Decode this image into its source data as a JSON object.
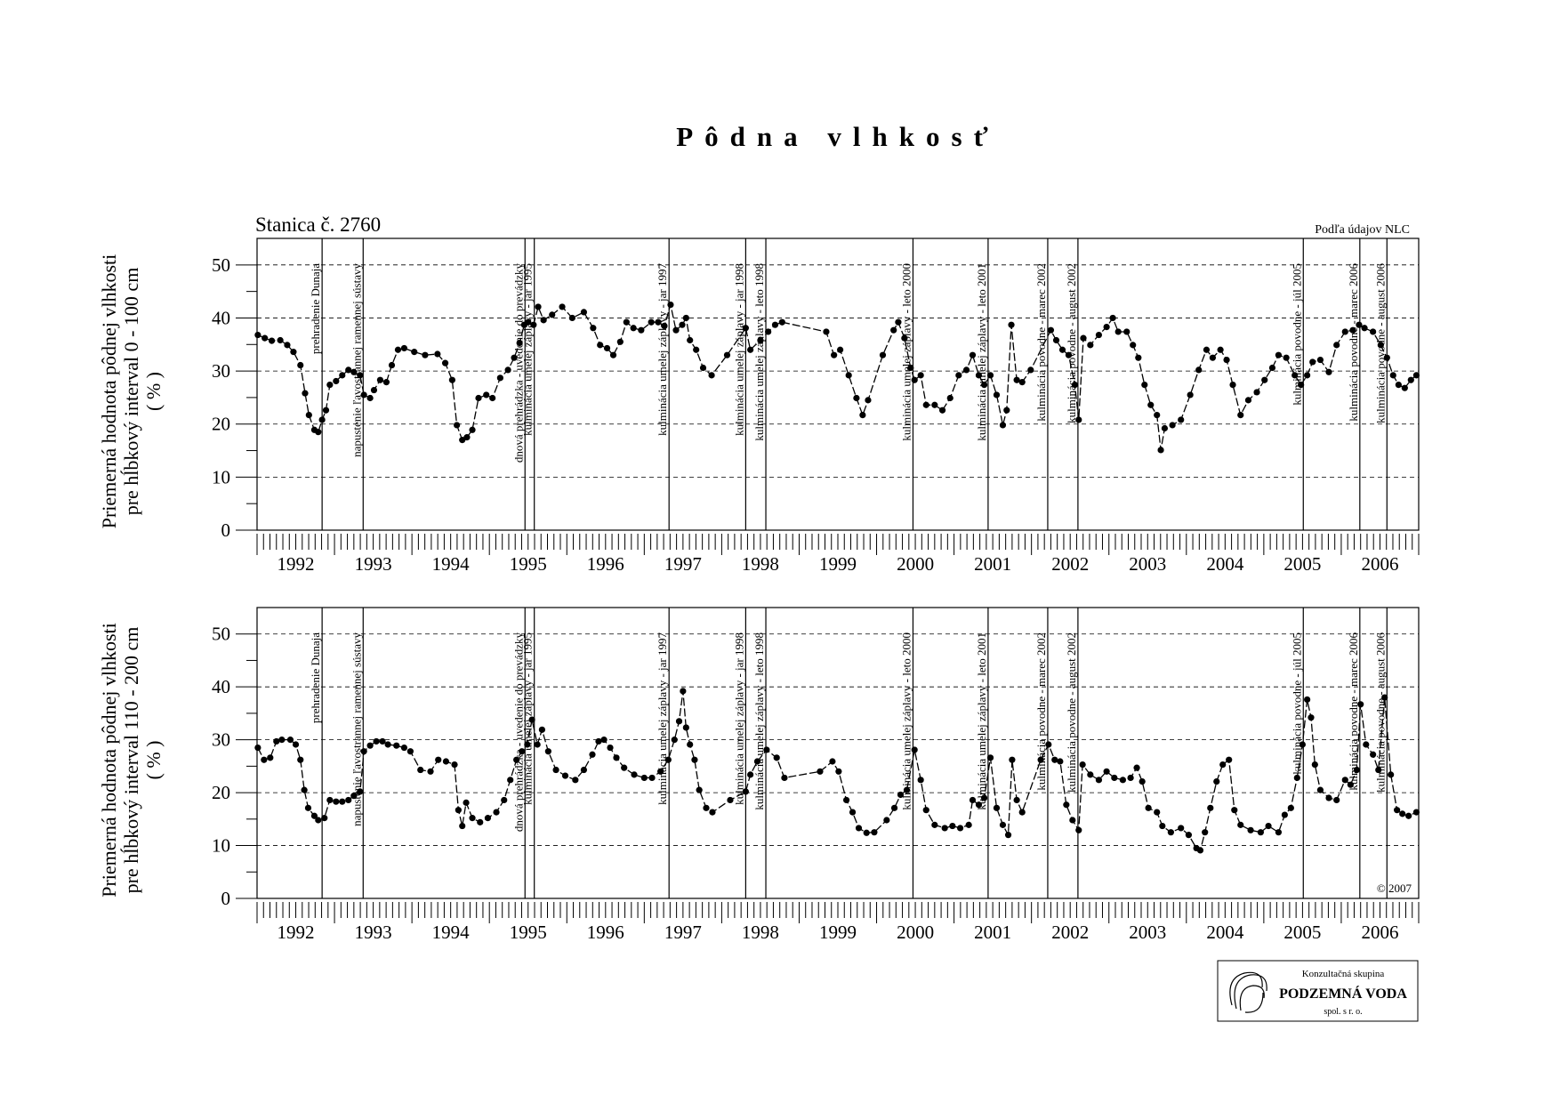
{
  "title": "Pôdna vlhkosť",
  "annotations": [
    {
      "x": 1992.84,
      "label": "prehradenie Dunaja"
    },
    {
      "x": 1993.37,
      "label": "napustenie ľavostrannej ramennej sústavy"
    },
    {
      "x": 1995.46,
      "label": "dnová prehrádzka - uvedenie do prevádzky"
    },
    {
      "x": 1995.58,
      "label": "kulminácia umelej záplavy - jar 1995"
    },
    {
      "x": 1997.32,
      "label": "kulminácia umelej záplavy - jar 1997"
    },
    {
      "x": 1998.31,
      "label": "kulminácia umelej záplavy - jar 1998"
    },
    {
      "x": 1998.57,
      "label": "kulminácia umelej záplavy - leto 1998"
    },
    {
      "x": 2000.47,
      "label": "kulminácia umelej záplavy - leto 2000"
    },
    {
      "x": 2001.44,
      "label": "kulminácia umelej záplavy - leto 2001"
    },
    {
      "x": 2002.21,
      "label": "kulminácia povodne - marec 2002"
    },
    {
      "x": 2002.6,
      "label": "kulminácia povodne - august 2002"
    },
    {
      "x": 2005.51,
      "label": "kulminácia povodne - júl 2005"
    },
    {
      "x": 2006.24,
      "label": "kulminácia povodne - marec 2006"
    },
    {
      "x": 2006.59,
      "label": "kulminácia povodne - august 2006"
    }
  ],
  "logo": {
    "line1": "Konzultačná skupina",
    "line2": "PODZEMNÁ VODA",
    "line3": "spol. s r. o."
  },
  "chart_data": [
    {
      "type": "line",
      "title": "Stanica č. 2760",
      "note": "Podľa údajov NLC",
      "ylabel": [
        "Priemerná hodnota pôdnej vlhkosti",
        "pre hĺbkový interval 0 - 100 cm",
        "( % )"
      ],
      "color": "#000000",
      "grid": true,
      "xlim": [
        1992,
        2007
      ],
      "ylim": [
        0,
        55
      ],
      "yticks": [
        0,
        10,
        20,
        30,
        40,
        50
      ],
      "xticks": [
        {
          "value": 1992.5,
          "label": "1992"
        },
        {
          "value": 1993.5,
          "label": "1993"
        },
        {
          "value": 1994.5,
          "label": "1994"
        },
        {
          "value": 1995.5,
          "label": "1995"
        },
        {
          "value": 1996.5,
          "label": "1996"
        },
        {
          "value": 1997.5,
          "label": "1997"
        },
        {
          "value": 1998.5,
          "label": "1998"
        },
        {
          "value": 1999.5,
          "label": "1999"
        },
        {
          "value": 2000.5,
          "label": "2000"
        },
        {
          "value": 2001.5,
          "label": "2001"
        },
        {
          "value": 2002.5,
          "label": "2002"
        },
        {
          "value": 2003.5,
          "label": "2003"
        },
        {
          "value": 2004.5,
          "label": "2004"
        },
        {
          "value": 2005.5,
          "label": "2005"
        },
        {
          "value": 2006.5,
          "label": "2006"
        }
      ],
      "x": [
        1992.01,
        1992.1,
        1992.19,
        1992.3,
        1992.39,
        1992.47,
        1992.56,
        1992.62,
        1992.67,
        1992.74,
        1992.79,
        1992.84,
        1992.89,
        1992.94,
        1993.02,
        1993.1,
        1993.18,
        1993.25,
        1993.33,
        1993.38,
        1993.46,
        1993.51,
        1993.59,
        1993.67,
        1993.74,
        1993.82,
        1993.9,
        1994.03,
        1994.17,
        1994.33,
        1994.43,
        1994.52,
        1994.58,
        1994.65,
        1994.71,
        1994.78,
        1994.86,
        1994.96,
        1995.04,
        1995.14,
        1995.24,
        1995.32,
        1995.39,
        1995.45,
        1995.5,
        1995.57,
        1995.63,
        1995.7,
        1995.81,
        1995.94,
        1996.07,
        1996.22,
        1996.34,
        1996.43,
        1996.52,
        1996.6,
        1996.69,
        1996.77,
        1996.86,
        1996.96,
        1997.09,
        1997.18,
        1997.26,
        1997.34,
        1997.41,
        1997.49,
        1997.54,
        1997.59,
        1997.67,
        1997.76,
        1997.87,
        1998.07,
        1998.31,
        1998.37,
        1998.5,
        1998.6,
        1998.69,
        1998.78,
        1999.35,
        1999.45,
        1999.53,
        1999.64,
        1999.74,
        1999.82,
        1999.89,
        2000.08,
        2000.22,
        2000.28,
        2000.36,
        2000.44,
        2000.49,
        2000.57,
        2000.64,
        2000.75,
        2000.85,
        2000.95,
        2001.06,
        2001.16,
        2001.24,
        2001.32,
        2001.39,
        2001.47,
        2001.55,
        2001.63,
        2001.68,
        2001.74,
        2001.81,
        2001.88,
        2001.99,
        2002.25,
        2002.32,
        2002.4,
        2002.48,
        2002.56,
        2002.61,
        2002.67,
        2002.76,
        2002.87,
        2002.97,
        2003.05,
        2003.12,
        2003.23,
        2003.31,
        2003.38,
        2003.46,
        2003.54,
        2003.62,
        2003.67,
        2003.72,
        2003.82,
        2003.93,
        2004.05,
        2004.16,
        2004.26,
        2004.34,
        2004.44,
        2004.52,
        2004.6,
        2004.7,
        2004.8,
        2004.91,
        2005.01,
        2005.11,
        2005.19,
        2005.29,
        2005.4,
        2005.48,
        2005.56,
        2005.63,
        2005.73,
        2005.84,
        2005.94,
        2006.05,
        2006.15,
        2006.23,
        2006.3,
        2006.41,
        2006.51,
        2006.59,
        2006.67,
        2006.74,
        2006.82,
        2006.9,
        2006.97
      ],
      "values": [
        36.8,
        36.2,
        35.7,
        35.8,
        34.9,
        33.6,
        31.1,
        25.8,
        21.7,
        18.9,
        18.5,
        20.8,
        22.6,
        27.4,
        28.1,
        29.2,
        30.2,
        29.8,
        29.2,
        25.5,
        24.9,
        26.4,
        28.3,
        27.9,
        31.1,
        34.0,
        34.3,
        33.6,
        33.0,
        33.2,
        31.5,
        28.3,
        19.8,
        17.0,
        17.5,
        18.9,
        24.9,
        25.5,
        24.9,
        28.7,
        30.2,
        32.5,
        35.3,
        38.7,
        39.2,
        38.7,
        42.1,
        39.6,
        40.6,
        42.1,
        40.0,
        41.1,
        38.1,
        34.9,
        34.3,
        33.0,
        35.5,
        39.2,
        38.1,
        37.7,
        39.2,
        39.2,
        38.5,
        42.5,
        37.7,
        38.7,
        40.0,
        35.8,
        34.0,
        30.6,
        29.2,
        33.0,
        38.1,
        34.0,
        35.8,
        37.4,
        38.7,
        39.2,
        37.4,
        33.0,
        34.0,
        29.2,
        24.9,
        21.7,
        24.5,
        33.0,
        37.7,
        39.2,
        36.2,
        30.6,
        28.3,
        29.2,
        23.6,
        23.6,
        22.6,
        24.9,
        29.2,
        30.2,
        33.0,
        29.2,
        27.4,
        29.2,
        25.5,
        19.8,
        22.6,
        38.7,
        28.3,
        27.9,
        30.2,
        37.7,
        35.8,
        34.0,
        33.0,
        27.4,
        20.8,
        36.2,
        34.9,
        36.8,
        38.3,
        40.0,
        37.4,
        37.4,
        34.9,
        32.5,
        27.4,
        23.6,
        21.7,
        15.1,
        19.2,
        19.8,
        20.8,
        25.5,
        30.2,
        34.0,
        32.5,
        34.0,
        32.1,
        27.4,
        21.7,
        24.5,
        26.0,
        28.3,
        30.6,
        33.0,
        32.5,
        29.2,
        27.4,
        29.2,
        31.7,
        32.1,
        29.8,
        34.9,
        37.4,
        37.7,
        38.7,
        38.1,
        37.4,
        34.9,
        32.5,
        29.2,
        27.4,
        26.8,
        28.3,
        29.2
      ]
    },
    {
      "type": "line",
      "copyright": "© 2007",
      "ylabel": [
        "Priemerná hodnota pôdnej vlhkosti",
        "pre hĺbkový interval 110 - 200 cm",
        "( % )"
      ],
      "color": "#000000",
      "grid": true,
      "xlim": [
        1992,
        2007
      ],
      "ylim": [
        0,
        55
      ],
      "yticks": [
        0,
        10,
        20,
        30,
        40,
        50
      ],
      "xticks": [
        {
          "value": 1992.5,
          "label": "1992"
        },
        {
          "value": 1993.5,
          "label": "1993"
        },
        {
          "value": 1994.5,
          "label": "1994"
        },
        {
          "value": 1995.5,
          "label": "1995"
        },
        {
          "value": 1996.5,
          "label": "1996"
        },
        {
          "value": 1997.5,
          "label": "1997"
        },
        {
          "value": 1998.5,
          "label": "1998"
        },
        {
          "value": 1999.5,
          "label": "1999"
        },
        {
          "value": 2000.5,
          "label": "2000"
        },
        {
          "value": 2001.5,
          "label": "2001"
        },
        {
          "value": 2002.5,
          "label": "2002"
        },
        {
          "value": 2003.5,
          "label": "2003"
        },
        {
          "value": 2004.5,
          "label": "2004"
        },
        {
          "value": 2005.5,
          "label": "2005"
        },
        {
          "value": 2006.5,
          "label": "2006"
        }
      ],
      "x": [
        1992.01,
        1992.09,
        1992.17,
        1992.25,
        1992.32,
        1992.43,
        1992.5,
        1992.56,
        1992.61,
        1992.66,
        1992.74,
        1992.79,
        1992.87,
        1992.94,
        1993.02,
        1993.1,
        1993.18,
        1993.25,
        1993.33,
        1993.38,
        1993.46,
        1993.54,
        1993.62,
        1993.69,
        1993.8,
        1993.9,
        1993.98,
        1994.11,
        1994.24,
        1994.34,
        1994.44,
        1994.55,
        1994.6,
        1994.65,
        1994.7,
        1994.78,
        1994.88,
        1994.98,
        1995.09,
        1995.19,
        1995.27,
        1995.35,
        1995.42,
        1995.49,
        1995.55,
        1995.62,
        1995.68,
        1995.76,
        1995.86,
        1995.98,
        1996.11,
        1996.22,
        1996.33,
        1996.41,
        1996.48,
        1996.56,
        1996.64,
        1996.74,
        1996.87,
        1997.0,
        1997.1,
        1997.21,
        1997.31,
        1997.39,
        1997.45,
        1997.5,
        1997.54,
        1997.59,
        1997.65,
        1997.71,
        1997.8,
        1997.88,
        1998.11,
        1998.31,
        1998.37,
        1998.46,
        1998.58,
        1998.71,
        1998.81,
        1999.27,
        1999.43,
        1999.51,
        1999.61,
        1999.69,
        1999.77,
        1999.87,
        1999.97,
        2000.13,
        2000.23,
        2000.31,
        2000.39,
        2000.49,
        2000.57,
        2000.64,
        2000.75,
        2000.88,
        2000.98,
        2001.08,
        2001.19,
        2001.24,
        2001.32,
        2001.39,
        2001.47,
        2001.55,
        2001.63,
        2001.7,
        2001.75,
        2001.81,
        2001.88,
        2002.12,
        2002.22,
        2002.3,
        2002.37,
        2002.45,
        2002.53,
        2002.61,
        2002.66,
        2002.76,
        2002.87,
        2002.97,
        2003.07,
        2003.18,
        2003.28,
        2003.36,
        2003.43,
        2003.51,
        2003.62,
        2003.69,
        2003.8,
        2003.93,
        2004.03,
        2004.13,
        2004.18,
        2004.24,
        2004.31,
        2004.39,
        2004.47,
        2004.55,
        2004.62,
        2004.7,
        2004.83,
        2004.96,
        2005.06,
        2005.19,
        2005.27,
        2005.35,
        2005.43,
        2005.5,
        2005.56,
        2005.61,
        2005.66,
        2005.73,
        2005.84,
        2005.94,
        2006.05,
        2006.12,
        2006.2,
        2006.25,
        2006.32,
        2006.41,
        2006.48,
        2006.56,
        2006.64,
        2006.72,
        2006.79,
        2006.87,
        2006.97
      ],
      "values": [
        28.5,
        26.2,
        26.6,
        29.7,
        30.0,
        30.0,
        29.1,
        26.2,
        20.5,
        17.1,
        15.6,
        14.8,
        15.2,
        18.6,
        18.3,
        18.3,
        18.6,
        19.4,
        20.2,
        27.8,
        28.9,
        29.7,
        29.7,
        29.1,
        28.9,
        28.5,
        27.8,
        24.3,
        24.0,
        26.2,
        25.9,
        25.3,
        16.7,
        13.7,
        18.1,
        15.2,
        14.4,
        15.2,
        16.3,
        18.6,
        22.4,
        26.2,
        27.8,
        29.1,
        33.8,
        29.1,
        31.9,
        27.8,
        24.3,
        23.2,
        22.4,
        24.3,
        27.2,
        29.7,
        30.0,
        28.5,
        26.6,
        24.7,
        23.4,
        22.8,
        22.8,
        24.0,
        26.2,
        30.0,
        33.5,
        39.2,
        32.3,
        29.1,
        26.2,
        20.5,
        17.1,
        16.3,
        18.6,
        20.2,
        23.4,
        25.9,
        28.1,
        26.6,
        22.8,
        24.0,
        25.9,
        24.0,
        18.6,
        16.3,
        13.3,
        12.4,
        12.5,
        14.8,
        17.1,
        19.6,
        20.5,
        28.1,
        22.4,
        16.7,
        13.9,
        13.3,
        13.7,
        13.3,
        13.9,
        18.6,
        17.7,
        19.0,
        26.6,
        17.1,
        13.9,
        12.0,
        26.2,
        18.6,
        16.3,
        26.2,
        29.1,
        26.2,
        25.9,
        17.7,
        14.8,
        12.9,
        25.3,
        23.4,
        22.4,
        24.0,
        22.8,
        22.4,
        22.8,
        24.7,
        22.1,
        17.1,
        16.3,
        13.7,
        12.5,
        13.3,
        12.0,
        9.5,
        9.1,
        12.5,
        17.1,
        22.1,
        25.3,
        26.2,
        16.7,
        13.9,
        12.9,
        12.5,
        13.7,
        12.5,
        15.8,
        17.1,
        22.8,
        29.1,
        37.6,
        34.2,
        25.3,
        20.5,
        19.0,
        18.6,
        22.4,
        21.5,
        24.3,
        36.7,
        29.1,
        27.2,
        24.3,
        38.0,
        23.4,
        16.7,
        16.0,
        15.6,
        16.3
      ]
    }
  ]
}
